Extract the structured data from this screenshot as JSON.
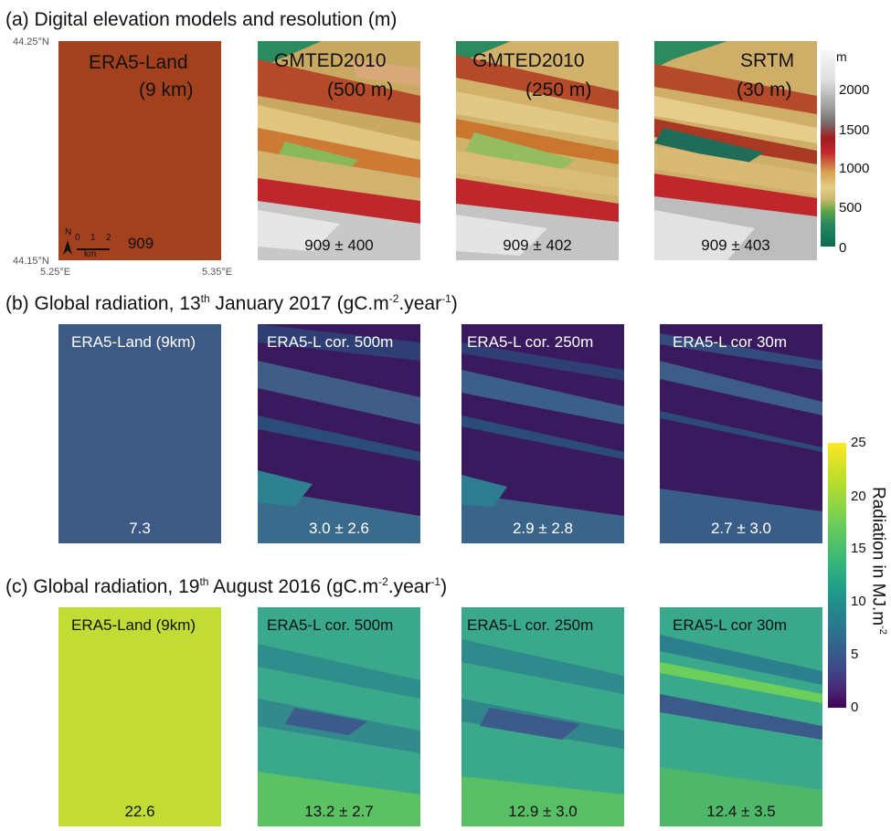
{
  "titles": {
    "a": "(a) Digital elevation models and resolution (m)",
    "b_pre": "(b) Global radiation, 13",
    "b_sup": "th",
    "b_post": " January 2017 (gC.m",
    "b_sup2": "-2",
    "b_post2": ".year",
    "b_sup3": "-1",
    "b_end": ")",
    "c_pre": "(c) Global radiation, 19",
    "c_sup": "th",
    "c_post": " August 2016 (gC.m",
    "c_sup2": "-2",
    "c_post2": ".year",
    "c_sup3": "-1",
    "c_end": ")"
  },
  "coords": {
    "lat_top": "44.25°N",
    "lat_bottom": "44.15°N",
    "lon_left": "5.25°E",
    "lon_right": "5.35°E"
  },
  "scalebar": {
    "north": "N",
    "ticks": [
      "0",
      "1",
      "2"
    ],
    "unit": "km"
  },
  "row_a": [
    {
      "label1": "ERA5-Land",
      "label2": "(9 km)",
      "value": "909"
    },
    {
      "label1": "GMTED2010",
      "label2": "(500 m)",
      "value": "909 ± 400"
    },
    {
      "label1": "GMTED2010",
      "label2": "(250 m)",
      "value": "909 ± 402"
    },
    {
      "label1": "SRTM",
      "label2": "(30 m)",
      "value": "909 ± 403"
    }
  ],
  "row_b": [
    {
      "label": "ERA5-Land (9km)",
      "value": "7.3"
    },
    {
      "label": "ERA5-L cor. 500m",
      "value": "3.0 ±  2.6"
    },
    {
      "label": "ERA5-L cor. 250m",
      "value": "2.9 ±  2.8"
    },
    {
      "label": "ERA5-L cor 30m",
      "value": "2.7 ±  3.0"
    }
  ],
  "row_c": [
    {
      "label": "ERA5-Land (9km)",
      "value": "22.6"
    },
    {
      "label": "ERA5-L cor. 500m",
      "value": "13.2 ±  2.7"
    },
    {
      "label": "ERA5-L cor. 250m",
      "value": "12.9 ± 3.0"
    },
    {
      "label": "ERA5-L cor 30m",
      "value": "12.4 ±  3.5"
    }
  ],
  "elev_legend": {
    "unit": "m",
    "ticks": [
      "2000",
      "1500",
      "1000",
      "500",
      "0"
    ]
  },
  "rad_legend": {
    "title": "Radiation in MJ.m",
    "title_sup": "-2",
    "ticks": [
      "25",
      "20",
      "15",
      "10",
      "5",
      "0"
    ]
  },
  "colors": {
    "era5_elev": "#a3401e",
    "era5_jan": "#3c5a83",
    "era5_aug": "#c2dc35",
    "jan_dark": "#3a1a5e",
    "aug_base": "#3aa88b"
  }
}
